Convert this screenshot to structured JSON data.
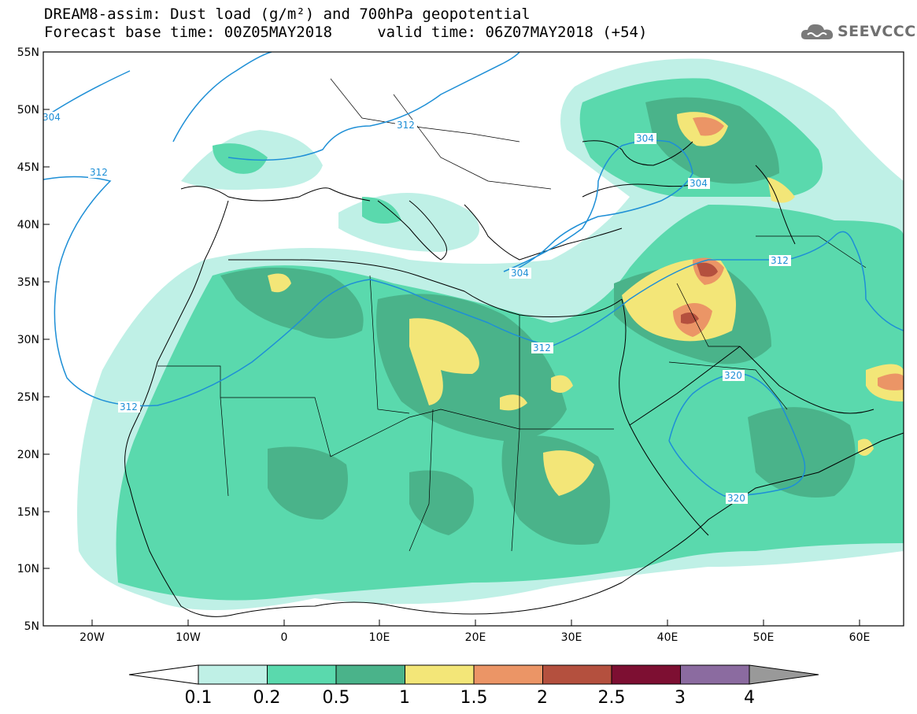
{
  "header": {
    "title_line1": "DREAM8-assim: Dust load (g/m²) and 700hPa geopotential",
    "title_line2": "Forecast base time: 00Z05MAY2018     valid time: 06Z07MAY2018 (+54)",
    "logo_text": "SEEVCCC"
  },
  "map": {
    "lat_labels": [
      "55N",
      "50N",
      "45N",
      "40N",
      "35N",
      "30N",
      "25N",
      "20N",
      "15N",
      "10N",
      "5N"
    ],
    "lon_labels": [
      "20W",
      "10W",
      "0",
      "10E",
      "20E",
      "30E",
      "40E",
      "50E",
      "60E"
    ],
    "isoline_labels": [
      "304",
      "312",
      "312",
      "312",
      "312",
      "304",
      "304",
      "304",
      "312",
      "320",
      "320"
    ],
    "isoline_color": "#1e8fd6",
    "coast_color": "#000000"
  },
  "colorbar": {
    "labels": [
      "0.1",
      "0.2",
      "0.5",
      "1",
      "1.5",
      "2",
      "2.5",
      "3",
      "4"
    ],
    "colors": [
      "#bff0e6",
      "#5ad9ad",
      "#4ab38a",
      "#f3e678",
      "#eb9566",
      "#b4503e",
      "#7d0f32",
      "#8b6ba0",
      "#999999"
    ]
  }
}
